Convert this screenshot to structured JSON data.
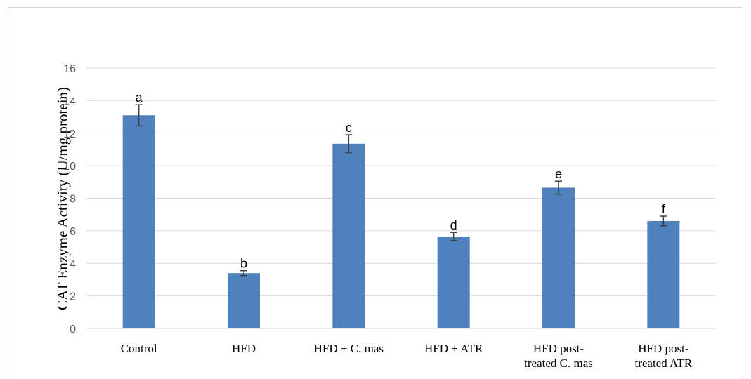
{
  "chart_data": {
    "type": "bar",
    "title": "",
    "xlabel": "",
    "ylabel": "CAT Enzyme Activity (U/mg protein)",
    "ylim": [
      0,
      16
    ],
    "yticks": [
      0,
      2,
      4,
      6,
      8,
      10,
      12,
      14,
      16
    ],
    "grid": true,
    "bar_color": "#4f81bd",
    "categories": [
      [
        "Control"
      ],
      [
        "HFD"
      ],
      [
        "HFD + C. mas"
      ],
      [
        "HFD + ATR"
      ],
      [
        "HFD post-",
        "treated  C. mas"
      ],
      [
        "HFD post-",
        "treated  ATR"
      ]
    ],
    "series": [
      {
        "values": [
          13.1,
          3.4,
          11.35,
          5.65,
          8.65,
          6.6
        ],
        "errors": [
          0.65,
          0.15,
          0.55,
          0.25,
          0.4,
          0.3
        ],
        "labels": [
          "a",
          "b",
          "c",
          "d",
          "e",
          "f"
        ]
      }
    ]
  }
}
